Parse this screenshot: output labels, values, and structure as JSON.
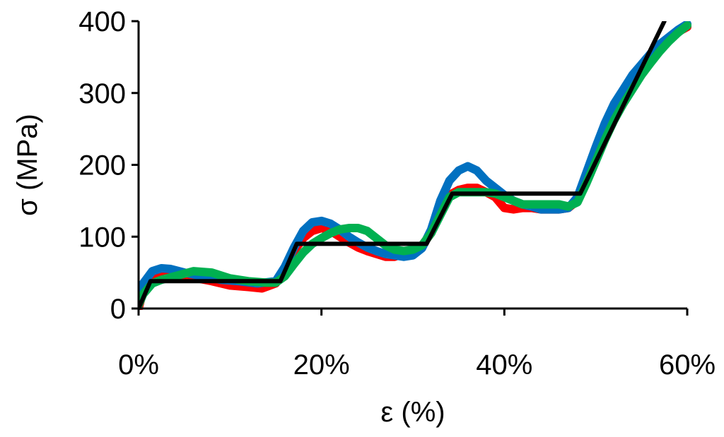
{
  "chart_data": {
    "type": "line",
    "title": "",
    "xlabel": "ε (%)",
    "ylabel": "σ (MPa)",
    "xlim": [
      0,
      60
    ],
    "ylim": [
      0,
      400
    ],
    "x_ticks": [
      0,
      20,
      40,
      60
    ],
    "x_tick_labels": [
      "0%",
      "20%",
      "40%",
      "60%"
    ],
    "y_ticks": [
      0,
      100,
      200,
      300,
      400
    ],
    "y_tick_labels": [
      "0",
      "100",
      "200",
      "300",
      "400"
    ],
    "grid": false,
    "legend": "none",
    "series": [
      {
        "color": "#ff0000",
        "x": [
          0,
          0.5,
          1.5,
          2.5,
          4,
          6,
          8,
          10,
          12,
          13.5,
          15,
          16,
          17,
          18,
          19,
          20,
          21,
          22,
          23,
          24,
          25,
          26,
          27,
          28,
          29,
          30,
          31,
          32,
          33,
          34,
          35,
          36,
          37,
          38,
          39,
          40,
          41,
          42,
          43,
          44,
          45,
          46,
          47,
          48,
          49,
          50,
          51,
          52,
          53,
          54,
          55,
          56,
          57,
          58,
          59,
          60
        ],
        "y": [
          0,
          25,
          45,
          48,
          45,
          43,
          38,
          32,
          30,
          28,
          35,
          55,
          80,
          98,
          108,
          112,
          108,
          100,
          92,
          85,
          80,
          76,
          72,
          72,
          76,
          82,
          88,
          105,
          135,
          158,
          165,
          168,
          168,
          162,
          155,
          140,
          138,
          140,
          140,
          138,
          138,
          138,
          140,
          150,
          180,
          210,
          240,
          270,
          295,
          318,
          335,
          350,
          365,
          375,
          385,
          392
        ]
      },
      {
        "color": "#0070c0",
        "x": [
          0,
          0.5,
          1.5,
          2.5,
          3.5,
          5,
          7,
          9,
          11,
          13,
          15,
          16,
          17,
          18,
          19,
          20,
          21,
          22,
          23,
          24,
          25,
          26,
          27,
          28,
          29,
          30,
          31,
          32,
          33,
          34,
          35,
          36,
          37,
          38,
          39,
          40,
          41,
          42,
          43,
          44,
          45,
          46,
          47,
          48,
          49,
          50,
          51,
          52,
          53,
          54,
          55,
          56,
          57,
          58,
          59,
          60
        ],
        "y": [
          10,
          35,
          52,
          56,
          55,
          50,
          45,
          40,
          38,
          35,
          38,
          58,
          85,
          108,
          120,
          122,
          118,
          110,
          100,
          92,
          85,
          80,
          76,
          74,
          72,
          74,
          84,
          110,
          150,
          178,
          192,
          198,
          192,
          178,
          168,
          158,
          150,
          145,
          142,
          138,
          138,
          138,
          140,
          155,
          190,
          225,
          258,
          285,
          305,
          325,
          340,
          355,
          368,
          378,
          388,
          396
        ]
      },
      {
        "color": "#00b050",
        "x": [
          0,
          0.5,
          1.5,
          2.5,
          4,
          6,
          8,
          10,
          12,
          14,
          15,
          16,
          17,
          18,
          19,
          20,
          21,
          22,
          23,
          24,
          25,
          26,
          27,
          28,
          29,
          30,
          31,
          32,
          33,
          34,
          35,
          36,
          37,
          38,
          39,
          40,
          41,
          42,
          43,
          44,
          45,
          46,
          47,
          48,
          49,
          50,
          51,
          52,
          53,
          54,
          55,
          56,
          57,
          58,
          59,
          60
        ],
        "y": [
          5,
          20,
          35,
          40,
          45,
          52,
          50,
          42,
          38,
          36,
          36,
          45,
          62,
          78,
          90,
          98,
          105,
          110,
          112,
          112,
          108,
          98,
          88,
          82,
          80,
          82,
          88,
          105,
          130,
          155,
          162,
          162,
          162,
          162,
          160,
          155,
          150,
          145,
          145,
          145,
          145,
          145,
          142,
          148,
          175,
          205,
          235,
          262,
          285,
          305,
          325,
          342,
          358,
          372,
          384,
          394
        ]
      },
      {
        "color": "#000000",
        "x": [
          0,
          1.3,
          15.5,
          17.3,
          31.5,
          34.3,
          48.3,
          57.5
        ],
        "y": [
          0,
          38,
          38,
          90,
          90,
          160,
          160,
          400
        ]
      }
    ]
  }
}
